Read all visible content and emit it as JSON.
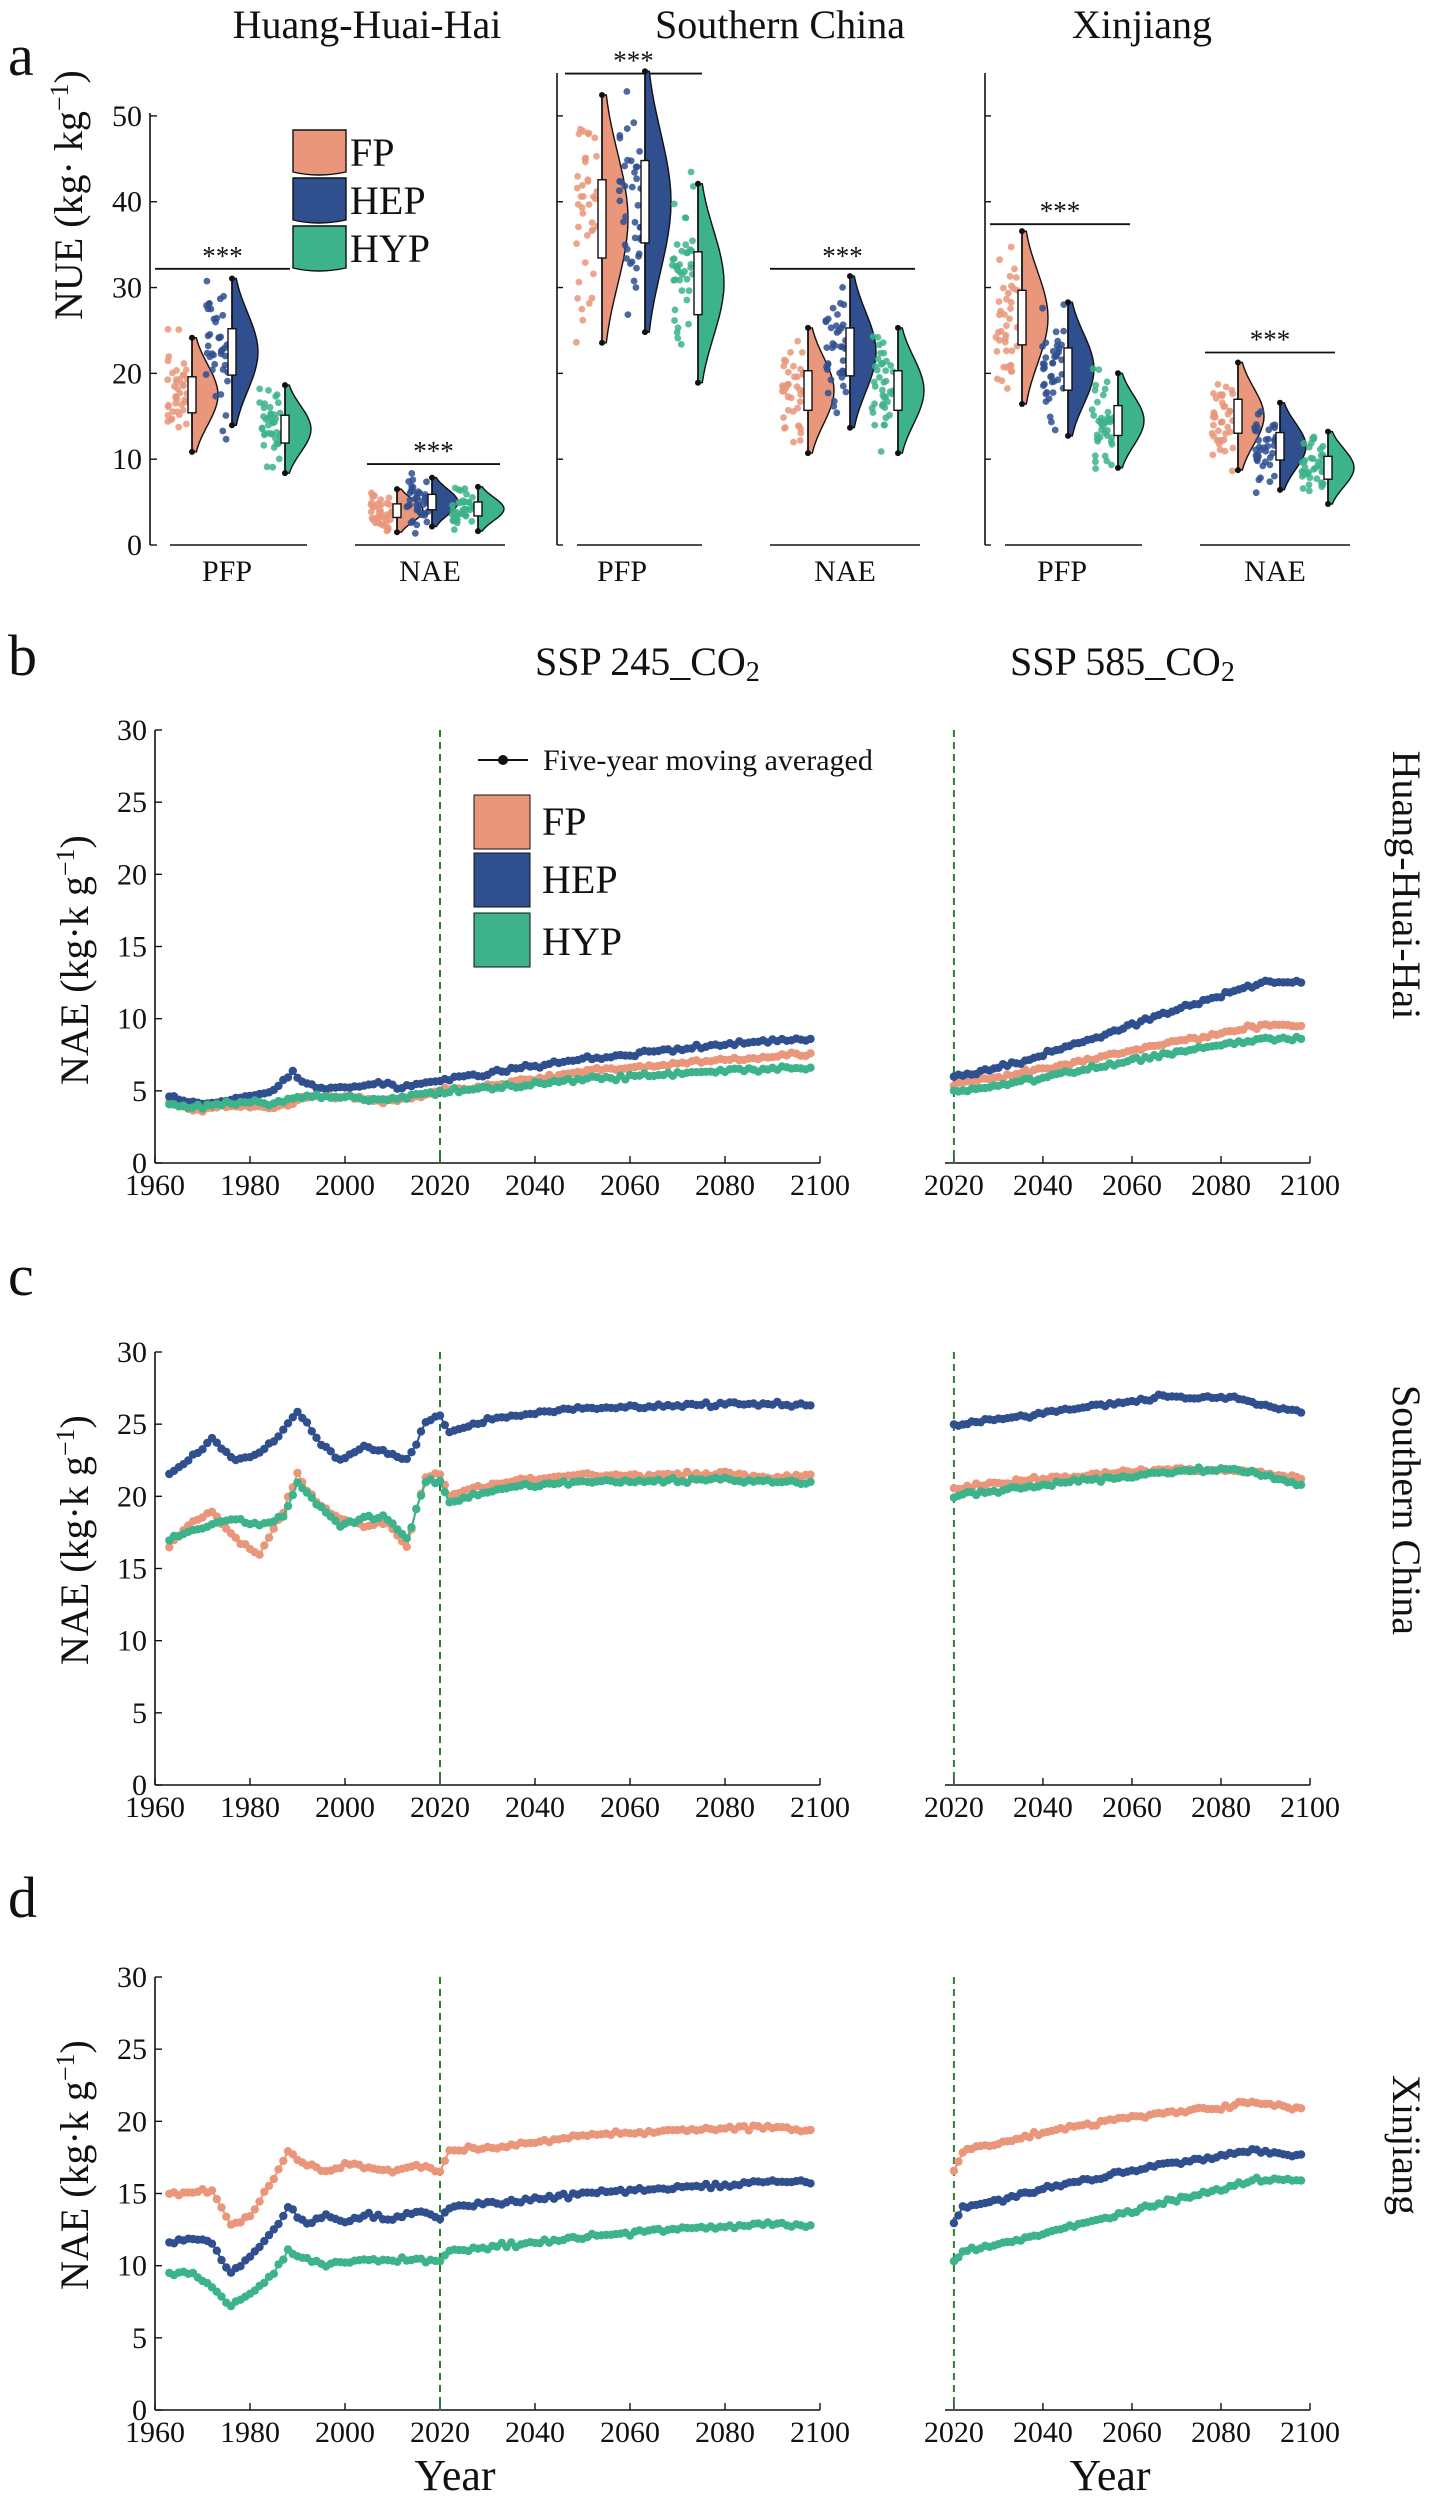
{
  "colors": {
    "FP": "#E9967A",
    "HEP": "#2F4F8F",
    "HYP": "#3CB38A",
    "divider": "#2E7D32"
  },
  "labels": {
    "panel_a": "a",
    "panel_b": "b",
    "panel_c": "c",
    "panel_d": "d",
    "region_hhh": "Huang-Huai-Hai",
    "region_sc": "Southern China",
    "region_xj": "Xinjiang",
    "nue_ylabel_main": "NUE (kg· kg",
    "nue_ylabel_sup": "−1",
    "nue_ylabel_end": ")",
    "nae_ylabel_main": "NAE (kg·k g",
    "nae_ylabel_sup": "−1",
    "nae_ylabel_end": ")",
    "ssp245_main": "SSP 245_CO",
    "ssp245_sub": "2",
    "ssp585_main": "SSP 585_CO",
    "ssp585_sub": "2",
    "pfp": "PFP",
    "nae": "NAE",
    "sig": "***",
    "legend_fp": "FP",
    "legend_hep": "HEP",
    "legend_hyp": "HYP",
    "legend_moving": "Five-year moving averaged",
    "xlabel": "Year"
  },
  "chart_data": [
    {
      "type": "violin",
      "title": "a",
      "ylabel": "NUE (kg· kg−1)",
      "ylim": [
        0,
        55
      ],
      "yticks": [
        0,
        10,
        20,
        30,
        40,
        50
      ],
      "regions": [
        "Huang-Huai-Hai",
        "Southern China",
        "Xinjiang"
      ],
      "metrics": [
        "PFP",
        "NAE"
      ],
      "series": [
        "FP",
        "HEP",
        "HYP"
      ],
      "medians": {
        "Huang-Huai-Hai": {
          "PFP": [
            17.5,
            22.5,
            13.5
          ],
          "NAE": [
            4.0,
            5.0,
            4.2
          ]
        },
        "Southern China": {
          "PFP": [
            38.0,
            40.0,
            30.5
          ],
          "NAE": [
            18.0,
            22.5,
            18.0
          ]
        },
        "Xinjiang": {
          "PFP": [
            26.5,
            20.5,
            14.5
          ],
          "NAE": [
            15.0,
            11.5,
            9.0
          ]
        }
      },
      "significance": "***"
    },
    {
      "type": "line",
      "title": "b",
      "row_label": "Huang-Huai-Hai",
      "ylabel": "NAE (kg·k g−1)",
      "ylim": [
        0,
        30
      ],
      "yticks": [
        0,
        5,
        10,
        15,
        20,
        25,
        30
      ],
      "left": {
        "title": "SSP 245_CO2",
        "xlim": [
          1960,
          2100
        ],
        "xticks": [
          1960,
          1980,
          2000,
          2020,
          2040,
          2060,
          2080,
          2100
        ],
        "x": [
          1963,
          1970,
          1975,
          1980,
          1985,
          1989,
          1992,
          1997,
          2003,
          2007,
          2012,
          2017,
          2020,
          2025,
          2030,
          2040,
          2050,
          2060,
          2070,
          2080,
          2090,
          2098
        ],
        "series": [
          {
            "name": "FP",
            "values": [
              4.2,
              3.6,
              3.9,
              4.0,
              3.8,
              4.2,
              4.6,
              4.6,
              4.5,
              4.3,
              4.4,
              4.7,
              5.0,
              5.2,
              5.4,
              5.8,
              6.3,
              6.6,
              6.9,
              7.2,
              7.4,
              7.6
            ]
          },
          {
            "name": "HEP",
            "values": [
              4.6,
              4.0,
              4.3,
              4.6,
              5.0,
              6.3,
              5.4,
              5.1,
              5.3,
              5.6,
              5.2,
              5.6,
              5.7,
              6.0,
              6.2,
              6.7,
              7.2,
              7.5,
              7.9,
              8.2,
              8.5,
              8.6
            ]
          },
          {
            "name": "HYP",
            "values": [
              4.0,
              3.9,
              4.1,
              4.2,
              4.1,
              4.5,
              4.7,
              4.6,
              4.5,
              4.4,
              4.5,
              4.8,
              4.9,
              5.0,
              5.2,
              5.5,
              5.8,
              6.0,
              6.2,
              6.4,
              6.5,
              6.6
            ]
          }
        ]
      },
      "right": {
        "title": "SSP 585_CO2",
        "xlim": [
          2018,
          2100
        ],
        "xticks": [
          2020,
          2040,
          2060,
          2080,
          2100
        ],
        "x": [
          2020,
          2030,
          2040,
          2050,
          2060,
          2070,
          2080,
          2090,
          2098
        ],
        "series": [
          {
            "name": "FP",
            "values": [
              5.4,
              5.9,
              6.5,
              7.1,
              7.8,
              8.4,
              9.0,
              9.6,
              9.5
            ]
          },
          {
            "name": "HEP",
            "values": [
              6.0,
              6.6,
              7.5,
              8.5,
              9.6,
              10.6,
              11.6,
              12.6,
              12.5
            ]
          },
          {
            "name": "HYP",
            "values": [
              4.9,
              5.4,
              5.9,
              6.5,
              7.1,
              7.7,
              8.2,
              8.6,
              8.6
            ]
          }
        ]
      },
      "annotation": "Five-year moving averaged"
    },
    {
      "type": "line",
      "title": "c",
      "row_label": "Southern China",
      "ylabel": "NAE (kg·k g−1)",
      "ylim": [
        0,
        30
      ],
      "yticks": [
        0,
        5,
        10,
        15,
        20,
        25,
        30
      ],
      "left": {
        "xlim": [
          1960,
          2100
        ],
        "xticks": [
          1960,
          1980,
          2000,
          2020,
          2040,
          2060,
          2080,
          2100
        ],
        "x": [
          1963,
          1967,
          1972,
          1977,
          1982,
          1987,
          1990,
          1994,
          1999,
          2004,
          2009,
          2013,
          2017,
          2020,
          2022,
          2030,
          2040,
          2050,
          2060,
          2070,
          2080,
          2090,
          2098
        ],
        "series": [
          {
            "name": "FP",
            "values": [
              16.5,
              18.0,
              19.0,
              17.0,
              16.0,
              19.0,
              21.5,
              19.5,
              18.5,
              18.0,
              18.2,
              16.5,
              21.5,
              21.5,
              20.0,
              20.8,
              21.2,
              21.5,
              21.4,
              21.5,
              21.6,
              21.3,
              21.5
            ]
          },
          {
            "name": "HEP",
            "values": [
              21.5,
              22.5,
              24.0,
              22.5,
              23.0,
              24.5,
              26.0,
              24.0,
              22.5,
              23.5,
              23.0,
              22.5,
              25.0,
              25.5,
              24.5,
              25.3,
              25.8,
              26.1,
              26.2,
              26.3,
              26.4,
              26.4,
              26.3
            ]
          },
          {
            "name": "HYP",
            "values": [
              17.0,
              17.5,
              18.0,
              18.5,
              18.0,
              18.5,
              21.0,
              19.5,
              18.0,
              18.5,
              18.5,
              17.0,
              21.0,
              21.0,
              19.5,
              20.3,
              20.8,
              21.0,
              21.0,
              21.1,
              21.2,
              21.0,
              21.0
            ]
          }
        ]
      },
      "right": {
        "xlim": [
          2018,
          2100
        ],
        "xticks": [
          2020,
          2040,
          2060,
          2080,
          2100
        ],
        "x": [
          2020,
          2030,
          2040,
          2050,
          2060,
          2068,
          2075,
          2082,
          2090,
          2098
        ],
        "series": [
          {
            "name": "FP",
            "values": [
              20.5,
              20.9,
              21.2,
              21.5,
              21.7,
              21.9,
              21.8,
              21.9,
              21.6,
              21.2
            ]
          },
          {
            "name": "HEP",
            "values": [
              25.0,
              25.3,
              25.8,
              26.2,
              26.6,
              27.0,
              26.8,
              26.9,
              26.3,
              25.8
            ]
          },
          {
            "name": "HYP",
            "values": [
              20.0,
              20.4,
              20.8,
              21.1,
              21.4,
              21.7,
              21.8,
              21.9,
              21.4,
              20.8
            ]
          }
        ]
      }
    },
    {
      "type": "line",
      "title": "d",
      "row_label": "Xinjiang",
      "ylabel": "NAE (kg·k g−1)",
      "xlabel": "Year",
      "ylim": [
        0,
        30
      ],
      "yticks": [
        0,
        5,
        10,
        15,
        20,
        25,
        30
      ],
      "left": {
        "xlim": [
          1960,
          2100
        ],
        "xticks": [
          1960,
          1980,
          2000,
          2020,
          2040,
          2060,
          2080,
          2100
        ],
        "x": [
          1963,
          1968,
          1972,
          1976,
          1980,
          1985,
          1988,
          1992,
          1996,
          2000,
          2005,
          2010,
          2015,
          2020,
          2022,
          2030,
          2040,
          2050,
          2060,
          2070,
          2080,
          2090,
          2098
        ],
        "series": [
          {
            "name": "FP",
            "values": [
              15.0,
              15.0,
              15.2,
              12.8,
              13.5,
              16.0,
              17.8,
              17.0,
              16.5,
              17.0,
              16.8,
              16.5,
              17.0,
              16.5,
              18.0,
              18.2,
              18.5,
              19.0,
              19.2,
              19.4,
              19.5,
              19.6,
              19.4
            ]
          },
          {
            "name": "HEP",
            "values": [
              11.5,
              12.0,
              11.5,
              9.5,
              10.5,
              12.5,
              14.0,
              13.0,
              13.5,
              13.0,
              13.5,
              13.2,
              13.8,
              13.3,
              14.0,
              14.3,
              14.6,
              15.0,
              15.2,
              15.4,
              15.6,
              15.8,
              15.7
            ]
          },
          {
            "name": "HYP",
            "values": [
              9.5,
              9.5,
              8.5,
              7.2,
              8.0,
              9.5,
              11.0,
              10.5,
              10.0,
              10.2,
              10.5,
              10.3,
              10.5,
              10.3,
              11.0,
              11.3,
              11.6,
              12.0,
              12.3,
              12.5,
              12.7,
              12.9,
              12.8
            ]
          }
        ]
      },
      "right": {
        "xlim": [
          2018,
          2100
        ],
        "xticks": [
          2020,
          2040,
          2060,
          2080,
          2100
        ],
        "x": [
          2020,
          2022,
          2030,
          2040,
          2050,
          2060,
          2070,
          2080,
          2088,
          2094,
          2098
        ],
        "series": [
          {
            "name": "FP",
            "values": [
              16.5,
              18.0,
              18.5,
              19.2,
              19.8,
              20.3,
              20.7,
              21.0,
              21.3,
              21.0,
              20.9
            ]
          },
          {
            "name": "HEP",
            "values": [
              13.0,
              14.0,
              14.5,
              15.3,
              16.0,
              16.6,
              17.2,
              17.6,
              18.0,
              17.8,
              17.7
            ]
          },
          {
            "name": "HYP",
            "values": [
              10.3,
              11.0,
              11.5,
              12.2,
              13.0,
              13.8,
              14.6,
              15.3,
              16.0,
              16.0,
              15.9
            ]
          }
        ]
      }
    }
  ]
}
